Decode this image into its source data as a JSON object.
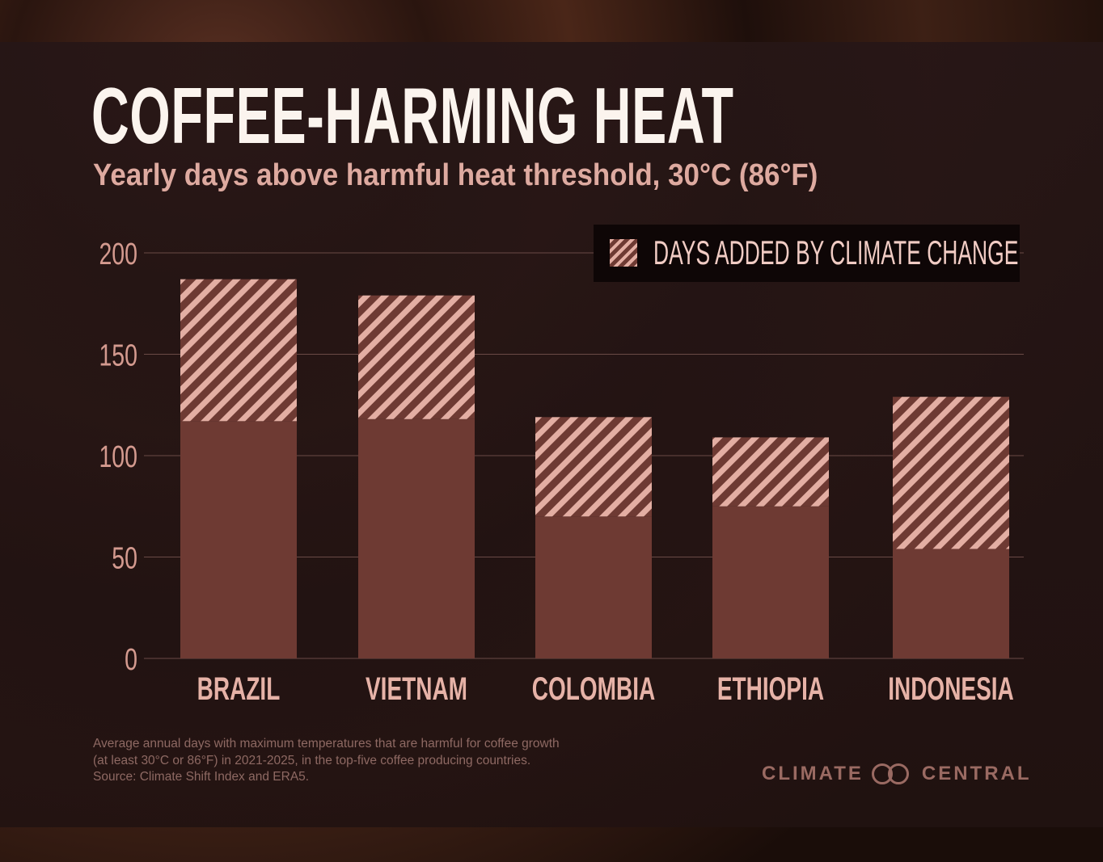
{
  "title": "COFFEE-HARMING HEAT",
  "subtitle": "Yearly days above harmful heat threshold, 30°C (86°F)",
  "legend": {
    "label": "DAYS ADDED BY CLIMATE CHANGE"
  },
  "footnote": [
    "Average annual days with maximum temperatures that are harmful for coffee growth",
    "(at least 30°C or 86°F) in 2021-2025, in the top-five coffee producing countries.",
    "Source: Climate Shift Index and ERA5."
  ],
  "logo": {
    "left": "CLIMATE",
    "right": "CENTRAL"
  },
  "colors": {
    "base": "#6e3a33",
    "hatch": "#e3aea3",
    "background": "#261616",
    "accent_text": "#deaaa0"
  },
  "chart_data": {
    "type": "bar",
    "stacked": true,
    "categories": [
      "BRAZIL",
      "VIETNAM",
      "COLOMBIA",
      "ETHIOPIA",
      "INDONESIA"
    ],
    "series": [
      {
        "values": [
          117,
          118,
          70,
          75,
          54
        ]
      },
      {
        "name": "DAYS ADDED BY CLIMATE CHANGE",
        "values": [
          70,
          61,
          49,
          34,
          75
        ],
        "pattern": "hatched"
      }
    ],
    "totals": [
      187,
      179,
      119,
      109,
      129
    ],
    "yticks": [
      "0",
      "50",
      "100",
      "150",
      "200"
    ],
    "ylim": [
      0,
      200
    ],
    "grid": true,
    "legend_position": "top-right"
  }
}
